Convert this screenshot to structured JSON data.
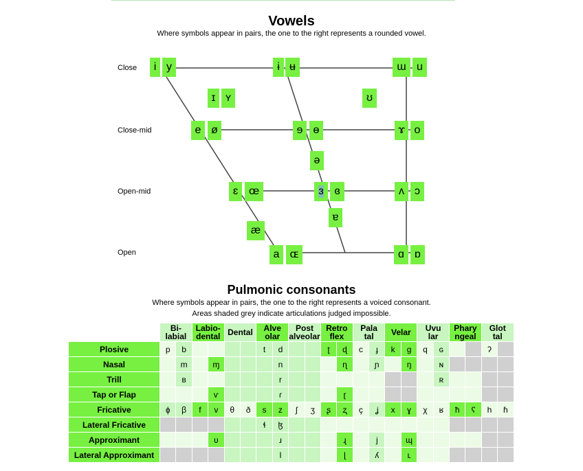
{
  "vowels": {
    "title": "Vowels",
    "subtitle": "Where symbols appear in pairs, the one to the right represents a rounded vowel.",
    "rows": [
      "Close",
      "Close-mid",
      "Open-mid",
      "Open"
    ],
    "symbols": [
      "i",
      "y",
      "ɨ",
      "ʉ",
      "ɯ",
      "u",
      "ɪ",
      "ʏ",
      "ʊ",
      "e",
      "ø",
      "ɘ",
      "ɵ",
      "ɤ",
      "o",
      "ə",
      "ɛ",
      "œ",
      "ɜ",
      "ɞ",
      "ʌ",
      "ɔ",
      "ɐ",
      "æ",
      "a",
      "ɶ",
      "ɑ",
      "ɒ"
    ],
    "selected": "ɜ"
  },
  "consonants": {
    "title": "Pulmonic consonants",
    "subtitle1": "Where symbols appear in pairs, the one to the right represents a voiced consonant.",
    "subtitle2": "Areas shaded grey indicate articulations judged impossible.",
    "columns": [
      [
        "Bi-",
        "labial"
      ],
      [
        "Labio-",
        "dental"
      ],
      [
        "Dental",
        ""
      ],
      [
        "Alve",
        "olar"
      ],
      [
        "Post",
        "alveolar"
      ],
      [
        "Retro",
        "flex"
      ],
      [
        "Pala",
        "tal"
      ],
      [
        "Velar",
        ""
      ],
      [
        "Uvu",
        "lar"
      ],
      [
        "Phary",
        "ngeal"
      ],
      [
        "Glot",
        "tal"
      ]
    ],
    "rows": [
      {
        "label": "Plosive",
        "cells": [
          [
            "p",
            "L"
          ],
          [
            "b",
            "M"
          ],
          [
            "",
            "L"
          ],
          [
            "",
            "L"
          ],
          [
            "",
            "M"
          ],
          [
            "",
            "M"
          ],
          [
            "t",
            "M"
          ],
          [
            "d",
            "M"
          ],
          [
            "",
            "M"
          ],
          [
            "",
            "M"
          ],
          [
            "ʈ",
            "B"
          ],
          [
            "ɖ",
            "B"
          ],
          [
            "c",
            "L"
          ],
          [
            "ɟ",
            "M"
          ],
          [
            "k",
            "B"
          ],
          [
            "ɡ",
            "B"
          ],
          [
            "q",
            "L"
          ],
          [
            "ɢ",
            "M"
          ],
          [
            "",
            "L"
          ],
          [
            "",
            "G"
          ],
          [
            "ʔ",
            "L"
          ],
          [
            "",
            "G"
          ]
        ]
      },
      {
        "label": "Nasal",
        "cells": [
          [
            "",
            "L"
          ],
          [
            "m",
            "M"
          ],
          [
            "",
            "L"
          ],
          [
            "ɱ",
            "B"
          ],
          [
            "",
            "M"
          ],
          [
            "",
            "M"
          ],
          [
            "",
            "M"
          ],
          [
            "n",
            "M"
          ],
          [
            "",
            "M"
          ],
          [
            "",
            "M"
          ],
          [
            "",
            "L"
          ],
          [
            "ɳ",
            "B"
          ],
          [
            "",
            "L"
          ],
          [
            "ɲ",
            "M"
          ],
          [
            "",
            "L"
          ],
          [
            "ŋ",
            "B"
          ],
          [
            "",
            "L"
          ],
          [
            "ɴ",
            "M"
          ],
          [
            "",
            "G"
          ],
          [
            "",
            "G"
          ],
          [
            "",
            "G"
          ],
          [
            "",
            "G"
          ]
        ]
      },
      {
        "label": "Trill",
        "cells": [
          [
            "",
            "L"
          ],
          [
            "ʙ",
            "M"
          ],
          [
            "",
            "L"
          ],
          [
            "",
            "L"
          ],
          [
            "",
            "M"
          ],
          [
            "",
            "M"
          ],
          [
            "",
            "M"
          ],
          [
            "r",
            "M"
          ],
          [
            "",
            "M"
          ],
          [
            "",
            "M"
          ],
          [
            "",
            "L"
          ],
          [
            "",
            "L"
          ],
          [
            "",
            "L"
          ],
          [
            "",
            "L"
          ],
          [
            "",
            "G"
          ],
          [
            "",
            "G"
          ],
          [
            "",
            "L"
          ],
          [
            "ʀ",
            "M"
          ],
          [
            "",
            "L"
          ],
          [
            "",
            "L"
          ],
          [
            "",
            "G"
          ],
          [
            "",
            "G"
          ]
        ]
      },
      {
        "label": "Tap or Flap",
        "cells": [
          [
            "",
            "L"
          ],
          [
            "",
            "L"
          ],
          [
            "",
            "L"
          ],
          [
            "ⱱ",
            "B"
          ],
          [
            "",
            "M"
          ],
          [
            "",
            "M"
          ],
          [
            "",
            "M"
          ],
          [
            "ɾ",
            "M"
          ],
          [
            "",
            "M"
          ],
          [
            "",
            "M"
          ],
          [
            "",
            "L"
          ],
          [
            "ɽ",
            "B"
          ],
          [
            "",
            "L"
          ],
          [
            "",
            "L"
          ],
          [
            "",
            "G"
          ],
          [
            "",
            "G"
          ],
          [
            "",
            "L"
          ],
          [
            "",
            "L"
          ],
          [
            "",
            "L"
          ],
          [
            "",
            "L"
          ],
          [
            "",
            "G"
          ],
          [
            "",
            "G"
          ]
        ]
      },
      {
        "label": "Fricative",
        "cells": [
          [
            "ɸ",
            "M"
          ],
          [
            "β",
            "M"
          ],
          [
            "f",
            "B"
          ],
          [
            "v",
            "B"
          ],
          [
            "θ",
            "L"
          ],
          [
            "ð",
            "L"
          ],
          [
            "s",
            "B"
          ],
          [
            "z",
            "B"
          ],
          [
            "ʃ",
            "L"
          ],
          [
            "ʒ",
            "L"
          ],
          [
            "ʂ",
            "B"
          ],
          [
            "ʐ",
            "B"
          ],
          [
            "ç",
            "L"
          ],
          [
            "ʝ",
            "M"
          ],
          [
            "x",
            "B"
          ],
          [
            "ɣ",
            "B"
          ],
          [
            "χ",
            "L"
          ],
          [
            "ʁ",
            "L"
          ],
          [
            "ħ",
            "B"
          ],
          [
            "ʕ",
            "B"
          ],
          [
            "h",
            "L"
          ],
          [
            "ɦ",
            "L"
          ]
        ]
      },
      {
        "label": "Lateral Fricative",
        "cells": [
          [
            "",
            "G"
          ],
          [
            "",
            "G"
          ],
          [
            "",
            "G"
          ],
          [
            "",
            "G"
          ],
          [
            "",
            "M"
          ],
          [
            "",
            "M"
          ],
          [
            "ɬ",
            "M"
          ],
          [
            "ɮ",
            "M"
          ],
          [
            "",
            "M"
          ],
          [
            "",
            "M"
          ],
          [
            "",
            "L"
          ],
          [
            "",
            "L"
          ],
          [
            "",
            "L"
          ],
          [
            "",
            "L"
          ],
          [
            "",
            "L"
          ],
          [
            "",
            "L"
          ],
          [
            "",
            "L"
          ],
          [
            "",
            "L"
          ],
          [
            "",
            "G"
          ],
          [
            "",
            "G"
          ],
          [
            "",
            "G"
          ],
          [
            "",
            "G"
          ]
        ]
      },
      {
        "label": "Approximant",
        "cells": [
          [
            "",
            "L"
          ],
          [
            "",
            "L"
          ],
          [
            "",
            "L"
          ],
          [
            "ʋ",
            "B"
          ],
          [
            "",
            "M"
          ],
          [
            "",
            "M"
          ],
          [
            "",
            "M"
          ],
          [
            "ɹ",
            "M"
          ],
          [
            "",
            "M"
          ],
          [
            "",
            "M"
          ],
          [
            "",
            "L"
          ],
          [
            "ɻ",
            "B"
          ],
          [
            "",
            "L"
          ],
          [
            "j",
            "M"
          ],
          [
            "",
            "L"
          ],
          [
            "ɰ",
            "B"
          ],
          [
            "",
            "L"
          ],
          [
            "",
            "L"
          ],
          [
            "",
            "L"
          ],
          [
            "",
            "L"
          ],
          [
            "",
            "G"
          ],
          [
            "",
            "G"
          ]
        ]
      },
      {
        "label": "Lateral Approximant",
        "cells": [
          [
            "",
            "G"
          ],
          [
            "",
            "G"
          ],
          [
            "",
            "G"
          ],
          [
            "",
            "G"
          ],
          [
            "",
            "M"
          ],
          [
            "",
            "M"
          ],
          [
            "",
            "M"
          ],
          [
            "l",
            "M"
          ],
          [
            "",
            "M"
          ],
          [
            "",
            "M"
          ],
          [
            "",
            "L"
          ],
          [
            "ɭ",
            "B"
          ],
          [
            "",
            "L"
          ],
          [
            "ʎ",
            "M"
          ],
          [
            "",
            "L"
          ],
          [
            "ʟ",
            "B"
          ],
          [
            "",
            "L"
          ],
          [
            "",
            "L"
          ],
          [
            "",
            "G"
          ],
          [
            "",
            "G"
          ],
          [
            "",
            "G"
          ],
          [
            "",
            "G"
          ]
        ]
      }
    ]
  },
  "colors": {
    "bright": "#77f042",
    "medium": "#c8f5c0",
    "light": "#ecfbe6",
    "grey": "#d0d0d0"
  }
}
